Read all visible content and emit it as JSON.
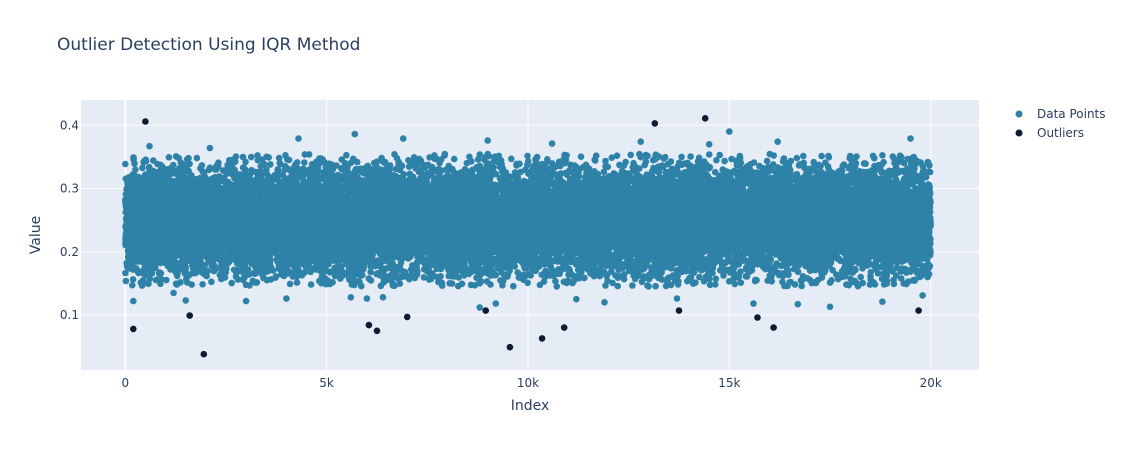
{
  "chart_data": {
    "type": "scatter",
    "title": "Outlier Detection Using IQR Method",
    "xlabel": "Index",
    "ylabel": "Value",
    "xlim": [
      -1100,
      21200
    ],
    "ylim": [
      0.013,
      0.44
    ],
    "x_ticks": [
      0,
      5000,
      10000,
      15000,
      20000
    ],
    "x_tick_labels": [
      "0",
      "5k",
      "10k",
      "15k",
      "20k"
    ],
    "y_ticks": [
      0.1,
      0.2,
      0.3,
      0.4
    ],
    "y_tick_labels": [
      "0.1",
      "0.2",
      "0.3",
      "0.4"
    ],
    "grid": true,
    "legend_position": "top-right",
    "series": [
      {
        "name": "Data Points",
        "color": "#2e82a8",
        "n_points": 20000,
        "distribution": {
          "mean": 0.25,
          "std": 0.04
        },
        "x_range": [
          0,
          19999
        ],
        "sample_extremes": [
          [
            200,
            0.122
          ],
          [
            600,
            0.367
          ],
          [
            1200,
            0.135
          ],
          [
            1500,
            0.123
          ],
          [
            2100,
            0.364
          ],
          [
            3000,
            0.122
          ],
          [
            4300,
            0.379
          ],
          [
            4000,
            0.126
          ],
          [
            5600,
            0.128
          ],
          [
            5700,
            0.386
          ],
          [
            6000,
            0.126
          ],
          [
            6400,
            0.128
          ],
          [
            6900,
            0.379
          ],
          [
            8800,
            0.112
          ],
          [
            9000,
            0.376
          ],
          [
            9200,
            0.118
          ],
          [
            10600,
            0.371
          ],
          [
            11200,
            0.125
          ],
          [
            11900,
            0.12
          ],
          [
            12800,
            0.374
          ],
          [
            13700,
            0.126
          ],
          [
            14500,
            0.37
          ],
          [
            15000,
            0.39
          ],
          [
            15600,
            0.118
          ],
          [
            16200,
            0.374
          ],
          [
            16700,
            0.117
          ],
          [
            17500,
            0.113
          ],
          [
            18800,
            0.121
          ],
          [
            19500,
            0.379
          ],
          [
            19800,
            0.131
          ]
        ]
      },
      {
        "name": "Outliers",
        "color": "#0d1b33",
        "points": [
          [
            200,
            0.078
          ],
          [
            500,
            0.406
          ],
          [
            1600,
            0.099
          ],
          [
            1950,
            0.038
          ],
          [
            6050,
            0.084
          ],
          [
            6250,
            0.075
          ],
          [
            7000,
            0.097
          ],
          [
            8950,
            0.107
          ],
          [
            9550,
            0.049
          ],
          [
            10350,
            0.063
          ],
          [
            10900,
            0.08
          ],
          [
            13150,
            0.403
          ],
          [
            13750,
            0.107
          ],
          [
            14400,
            0.411
          ],
          [
            15700,
            0.096
          ],
          [
            16100,
            0.08
          ],
          [
            19700,
            0.107
          ]
        ]
      }
    ]
  }
}
